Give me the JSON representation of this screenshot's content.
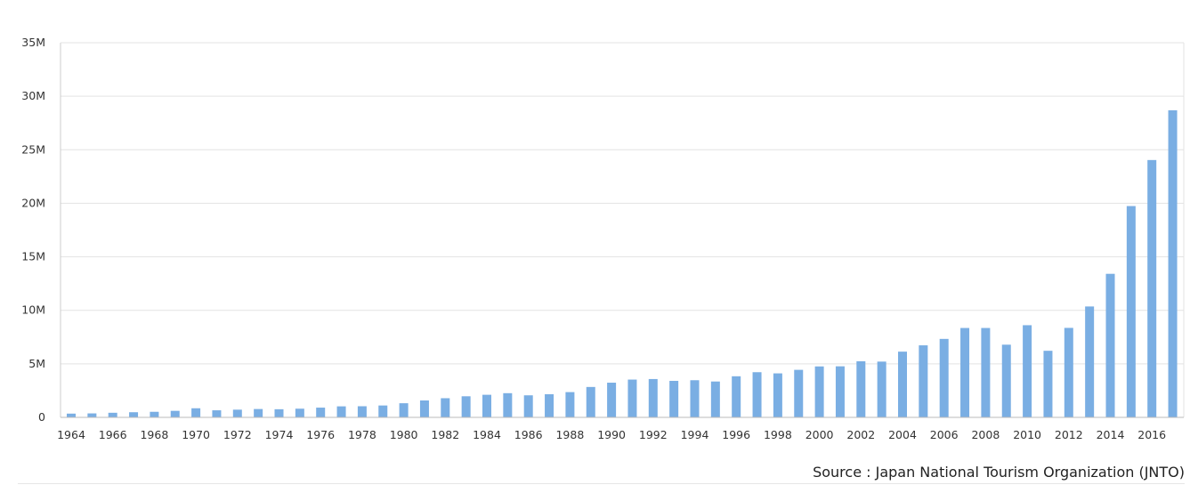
{
  "chart_data": {
    "type": "bar",
    "categories": [
      "1964",
      "1965",
      "1966",
      "1967",
      "1968",
      "1969",
      "1970",
      "1971",
      "1972",
      "1973",
      "1974",
      "1975",
      "1976",
      "1977",
      "1978",
      "1979",
      "1980",
      "1981",
      "1982",
      "1983",
      "1984",
      "1985",
      "1986",
      "1987",
      "1988",
      "1989",
      "1990",
      "1991",
      "1992",
      "1993",
      "1994",
      "1995",
      "1996",
      "1997",
      "1998",
      "1999",
      "2000",
      "2001",
      "2002",
      "2003",
      "2004",
      "2005",
      "2006",
      "2007",
      "2008",
      "2009",
      "2010",
      "2011",
      "2012",
      "2013",
      "2014",
      "2015",
      "2016",
      "2017"
    ],
    "x_tick_labels": [
      "1964",
      "1966",
      "1968",
      "1970",
      "1972",
      "1974",
      "1976",
      "1978",
      "1980",
      "1982",
      "1984",
      "1986",
      "1988",
      "1990",
      "1992",
      "1994",
      "1996",
      "1998",
      "2000",
      "2002",
      "2004",
      "2006",
      "2008",
      "2010",
      "2012",
      "2014",
      "2016"
    ],
    "values": [
      0.35,
      0.37,
      0.43,
      0.48,
      0.52,
      0.61,
      0.85,
      0.66,
      0.72,
      0.78,
      0.76,
      0.81,
      0.91,
      1.03,
      1.04,
      1.11,
      1.32,
      1.58,
      1.79,
      1.97,
      2.11,
      2.26,
      2.06,
      2.16,
      2.36,
      2.84,
      3.24,
      3.53,
      3.58,
      3.41,
      3.47,
      3.35,
      3.84,
      4.22,
      4.11,
      4.44,
      4.76,
      4.77,
      5.24,
      5.21,
      6.14,
      6.73,
      7.33,
      8.35,
      8.35,
      6.79,
      8.61,
      6.22,
      8.36,
      10.36,
      13.41,
      19.74,
      24.04,
      28.69
    ],
    "unit": "millions",
    "ylim": [
      0,
      35
    ],
    "y_ticks": [
      0,
      5,
      10,
      15,
      20,
      25,
      30,
      35
    ],
    "y_tick_labels": [
      "0",
      "5M",
      "10M",
      "15M",
      "20M",
      "25M",
      "30M",
      "35M"
    ],
    "bar_color": "#7aaee3",
    "grid": true,
    "title": "",
    "xlabel": "",
    "ylabel": ""
  },
  "source_text": "Source : Japan National Tourism Organization (JNTO)"
}
